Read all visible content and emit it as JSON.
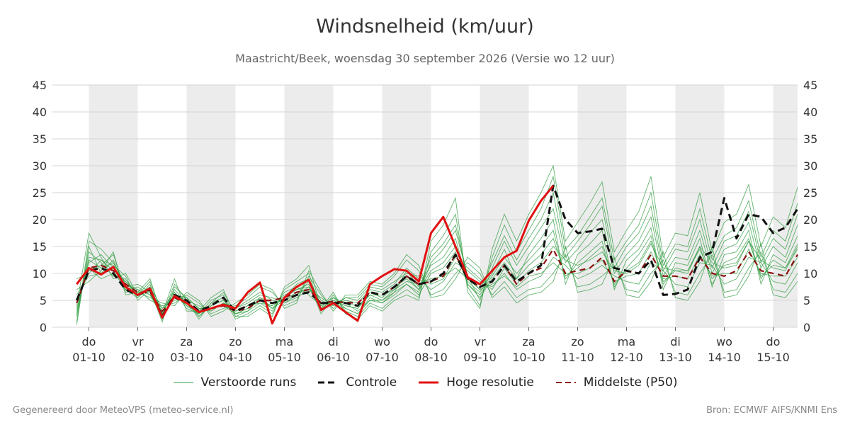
{
  "title": "Windsnelheid (km/uur)",
  "subtitle": "Maastricht/Beek, woensdag 30 september 2026 (Versie wo 12 uur)",
  "footer": {
    "left": "Gegenereerd door MeteoVPS (meteo-service.nl)",
    "right": "Bron: ECMWF AIFS/KNMI Ens"
  },
  "legend": [
    {
      "label": "Verstoorde runs",
      "color": "#2e9b3e",
      "style": "thin"
    },
    {
      "label": "Controle",
      "color": "#111111",
      "style": "dashed"
    },
    {
      "label": "Hoge resolutie",
      "color": "#e01010",
      "style": "solid"
    },
    {
      "label": "Middelste (P50)",
      "color": "#8b1010",
      "style": "dashed"
    }
  ],
  "chart_data": {
    "type": "line",
    "title": "Windsnelheid (km/uur)",
    "ylim": [
      0,
      45
    ],
    "yticks": [
      0,
      5,
      10,
      15,
      20,
      25,
      30,
      35,
      40,
      45
    ],
    "xlim": [
      -0.25,
      14.5
    ],
    "grid": true,
    "legend_position": "bottom",
    "x_day_labels": [
      {
        "day": "do",
        "date": "01-10"
      },
      {
        "day": "vr",
        "date": "02-10"
      },
      {
        "day": "za",
        "date": "03-10"
      },
      {
        "day": "zo",
        "date": "04-10"
      },
      {
        "day": "ma",
        "date": "05-10"
      },
      {
        "day": "di",
        "date": "06-10"
      },
      {
        "day": "wo",
        "date": "07-10"
      },
      {
        "day": "do",
        "date": "08-10"
      },
      {
        "day": "vr",
        "date": "09-10"
      },
      {
        "day": "za",
        "date": "10-10"
      },
      {
        "day": "zo",
        "date": "11-10"
      },
      {
        "day": "ma",
        "date": "12-10"
      },
      {
        "day": "di",
        "date": "13-10"
      },
      {
        "day": "wo",
        "date": "14-10"
      },
      {
        "day": "do",
        "date": "15-10"
      }
    ],
    "series": [
      {
        "name": "Hoge resolutie",
        "color": "#e01010",
        "style": "solid",
        "x": [
          -0.25,
          0.0,
          0.25,
          0.5,
          0.75,
          1.0,
          1.25,
          1.5,
          1.75,
          2.0,
          2.25,
          2.5,
          2.75,
          3.0,
          3.25,
          3.5,
          3.75,
          4.0,
          4.25,
          4.5,
          4.75,
          5.0,
          5.25,
          5.5,
          5.75,
          6.0,
          6.25,
          6.5,
          6.75,
          7.0,
          7.25,
          7.5,
          7.75,
          8.0,
          8.25,
          8.5,
          8.75,
          9.0,
          9.25,
          9.5
        ],
        "y": [
          8.0,
          11.0,
          9.8,
          11.2,
          7.5,
          6.0,
          7.2,
          1.8,
          5.8,
          4.5,
          2.8,
          3.5,
          4.2,
          3.5,
          6.5,
          8.3,
          0.7,
          5.5,
          7.5,
          8.8,
          3.2,
          4.5,
          2.8,
          1.2,
          8.0,
          9.5,
          10.8,
          10.5,
          8.5,
          17.5,
          20.5,
          15.0,
          9.3,
          8.0,
          10.5,
          13.0,
          14.2,
          19.8,
          23.5,
          26.3
        ]
      },
      {
        "name": "Controle",
        "color": "#111111",
        "style": "dashed",
        "x": [
          -0.25,
          0.0,
          0.25,
          0.5,
          0.75,
          1.0,
          1.25,
          1.5,
          1.75,
          2.0,
          2.25,
          2.5,
          2.75,
          3.0,
          3.25,
          3.5,
          3.75,
          4.0,
          4.25,
          4.5,
          4.75,
          5.0,
          5.25,
          5.5,
          5.75,
          6.0,
          6.25,
          6.5,
          6.75,
          7.0,
          7.25,
          7.5,
          7.75,
          8.0,
          8.25,
          8.5,
          8.75,
          9.0,
          9.25,
          9.5,
          9.75,
          10.0,
          10.25,
          10.5,
          10.75,
          11.0,
          11.25,
          11.5,
          11.75,
          12.0,
          12.25,
          12.5,
          12.75,
          13.0,
          13.25,
          13.5,
          13.75,
          14.0,
          14.25,
          14.5
        ],
        "y": [
          5.0,
          10.5,
          11.0,
          10.0,
          7.0,
          6.0,
          7.0,
          2.0,
          6.0,
          5.0,
          3.0,
          4.0,
          5.5,
          3.0,
          4.0,
          5.0,
          4.5,
          5.0,
          6.0,
          6.5,
          4.5,
          4.5,
          4.5,
          4.0,
          6.5,
          6.0,
          7.5,
          9.5,
          8.0,
          8.5,
          10.0,
          13.5,
          9.0,
          7.5,
          8.5,
          11.5,
          8.5,
          10.0,
          11.5,
          26.3,
          20.0,
          17.5,
          17.8,
          18.3,
          11.0,
          10.5,
          10.0,
          12.5,
          6.0,
          6.2,
          7.0,
          13.0,
          14.0,
          24.0,
          16.5,
          21.0,
          20.5,
          17.5,
          18.5,
          22.0
        ]
      },
      {
        "name": "Middelste (P50)",
        "color": "#8b1010",
        "style": "dashed",
        "x": [
          -0.25,
          0.0,
          0.25,
          0.5,
          0.75,
          1.0,
          1.25,
          1.5,
          1.75,
          2.0,
          2.25,
          2.5,
          2.75,
          3.0,
          3.25,
          3.5,
          3.75,
          4.0,
          4.25,
          4.5,
          4.75,
          5.0,
          5.25,
          5.5,
          5.75,
          6.0,
          6.25,
          6.5,
          6.75,
          7.0,
          7.25,
          7.5,
          7.75,
          8.0,
          8.25,
          8.5,
          8.75,
          9.0,
          9.25,
          9.5,
          9.75,
          10.0,
          10.25,
          10.5,
          10.75,
          11.0,
          11.25,
          11.5,
          11.75,
          12.0,
          12.25,
          12.5,
          12.75,
          13.0,
          13.25,
          13.5,
          13.75,
          14.0,
          14.25,
          14.5
        ],
        "y": [
          4.5,
          11.0,
          11.5,
          10.5,
          8.0,
          6.5,
          6.5,
          3.0,
          5.5,
          4.5,
          3.0,
          3.5,
          4.0,
          3.0,
          3.5,
          5.0,
          5.0,
          5.5,
          6.5,
          7.0,
          4.5,
          4.8,
          4.6,
          4.5,
          6.5,
          6.0,
          7.5,
          9.5,
          8.0,
          8.5,
          9.5,
          13.5,
          9.0,
          7.5,
          8.5,
          11.5,
          8.0,
          10.0,
          11.0,
          14.5,
          10.0,
          10.5,
          11.0,
          13.0,
          8.5,
          10.5,
          10.0,
          13.5,
          9.5,
          9.5,
          9.0,
          13.0,
          10.0,
          9.5,
          10.5,
          14.0,
          10.5,
          10.0,
          9.5,
          13.5
        ]
      }
    ],
    "ensemble": {
      "name": "Verstoorde runs",
      "color": "#2e9b3e",
      "x": [
        -0.25,
        0.0,
        0.25,
        0.5,
        0.75,
        1.0,
        1.25,
        1.5,
        1.75,
        2.0,
        2.25,
        2.5,
        2.75,
        3.0,
        3.25,
        3.5,
        3.75,
        4.0,
        4.25,
        4.5,
        4.75,
        5.0,
        5.25,
        5.5,
        5.75,
        6.0,
        6.25,
        6.5,
        6.75,
        7.0,
        7.25,
        7.5,
        7.75,
        8.0,
        8.25,
        8.5,
        8.75,
        9.0,
        9.25,
        9.5,
        9.75,
        10.0,
        10.25,
        10.5,
        10.75,
        11.0,
        11.25,
        11.5,
        11.75,
        12.0,
        12.25,
        12.5,
        12.75,
        13.0,
        13.25,
        13.5,
        13.75,
        14.0,
        14.25,
        14.5
      ],
      "runs": [
        [
          3.5,
          12.0,
          13.5,
          11.0,
          8.5,
          6.0,
          7.5,
          2.5,
          7.0,
          4.5,
          2.0,
          4.0,
          5.0,
          2.5,
          3.5,
          5.0,
          4.0,
          5.5,
          7.0,
          7.5,
          3.5,
          5.0,
          4.0,
          3.5,
          6.5,
          5.5,
          7.5,
          9.0,
          7.0,
          10.5,
          12.0,
          15.0,
          8.0,
          6.0,
          9.5,
          13.0,
          10.0,
          12.5,
          15.0,
          18.0,
          9.0,
          12.0,
          14.0,
          16.0,
          7.5,
          11.0,
          13.5,
          17.0,
          8.0,
          11.0,
          10.5,
          15.0,
          8.0,
          12.0,
          13.0,
          16.5,
          9.0,
          12.5,
          11.0,
          15.5
        ],
        [
          6.0,
          9.5,
          10.0,
          12.5,
          7.0,
          7.5,
          6.0,
          3.5,
          5.0,
          5.5,
          3.5,
          3.0,
          4.5,
          3.5,
          4.5,
          6.0,
          5.5,
          4.5,
          6.0,
          8.5,
          5.0,
          4.0,
          5.0,
          4.5,
          7.0,
          6.5,
          8.0,
          11.0,
          9.0,
          7.0,
          8.5,
          12.0,
          10.5,
          8.5,
          7.5,
          10.0,
          7.0,
          8.5,
          9.5,
          13.0,
          11.5,
          9.0,
          10.0,
          11.5,
          9.5,
          8.5,
          8.0,
          12.0,
          10.5,
          8.0,
          7.5,
          12.0,
          11.5,
          8.0,
          9.0,
          13.0,
          12.0,
          8.5,
          8.0,
          12.0
        ],
        [
          2.0,
          14.0,
          12.0,
          9.5,
          9.0,
          5.5,
          8.0,
          1.5,
          6.5,
          3.5,
          2.5,
          5.0,
          6.0,
          2.0,
          3.0,
          4.5,
          3.0,
          6.5,
          7.5,
          6.0,
          4.0,
          5.5,
          3.5,
          2.5,
          5.5,
          4.5,
          6.5,
          8.0,
          6.5,
          12.0,
          14.5,
          18.0,
          9.5,
          5.0,
          11.0,
          16.0,
          11.5,
          15.0,
          18.5,
          22.0,
          12.0,
          14.5,
          17.5,
          20.0,
          10.0,
          13.5,
          16.0,
          20.5,
          9.5,
          13.0,
          12.5,
          18.0,
          10.0,
          14.5,
          15.5,
          19.5,
          11.0,
          15.0,
          13.0,
          19.0
        ],
        [
          8.0,
          10.5,
          11.5,
          13.5,
          6.5,
          7.0,
          5.0,
          4.0,
          4.5,
          6.0,
          4.5,
          2.5,
          3.5,
          4.0,
          5.5,
          7.5,
          6.5,
          4.0,
          5.0,
          9.5,
          6.0,
          3.5,
          5.5,
          5.5,
          8.0,
          7.5,
          9.5,
          12.5,
          10.5,
          6.0,
          7.0,
          10.0,
          12.0,
          10.0,
          6.0,
          8.5,
          5.5,
          7.0,
          7.5,
          10.0,
          13.5,
          7.5,
          8.0,
          9.5,
          11.5,
          7.0,
          6.5,
          10.0,
          12.5,
          6.5,
          6.0,
          10.0,
          13.5,
          6.5,
          7.0,
          11.0,
          14.0,
          7.0,
          6.5,
          10.0
        ],
        [
          1.0,
          16.0,
          14.5,
          12.0,
          8.0,
          6.5,
          9.0,
          2.0,
          8.0,
          5.0,
          1.5,
          4.5,
          5.5,
          1.5,
          2.5,
          4.0,
          2.5,
          7.0,
          8.5,
          10.0,
          3.0,
          6.0,
          3.0,
          2.0,
          4.5,
          3.5,
          5.5,
          7.0,
          5.5,
          14.0,
          17.0,
          21.0,
          7.5,
          4.0,
          13.0,
          19.0,
          14.0,
          18.0,
          22.0,
          28.0,
          14.5,
          17.0,
          20.5,
          24.0,
          12.5,
          16.0,
          19.0,
          25.0,
          11.5,
          15.5,
          15.0,
          22.0,
          12.5,
          17.0,
          18.5,
          23.5,
          13.0,
          18.0,
          16.0,
          23.0
        ],
        [
          5.0,
          11.0,
          9.0,
          10.0,
          7.5,
          8.0,
          6.5,
          3.0,
          6.0,
          4.0,
          3.0,
          3.5,
          4.0,
          3.0,
          4.0,
          5.5,
          4.5,
          5.0,
          6.5,
          7.0,
          4.5,
          4.5,
          4.5,
          4.0,
          6.0,
          6.0,
          7.0,
          8.5,
          8.0,
          9.0,
          9.5,
          11.0,
          9.0,
          7.0,
          8.0,
          9.5,
          7.5,
          9.5,
          10.0,
          12.0,
          10.0,
          10.0,
          11.0,
          12.5,
          8.5,
          9.5,
          10.0,
          14.0,
          9.0,
          9.5,
          9.0,
          13.5,
          9.5,
          10.0,
          10.0,
          14.5,
          10.0,
          9.5,
          9.5,
          13.0
        ],
        [
          3.0,
          13.0,
          12.5,
          11.5,
          9.5,
          5.0,
          7.0,
          1.0,
          7.5,
          5.5,
          2.0,
          4.5,
          6.5,
          2.5,
          3.0,
          5.5,
          3.5,
          6.0,
          7.0,
          8.0,
          2.5,
          5.5,
          4.5,
          3.0,
          5.0,
          5.0,
          6.5,
          10.5,
          7.5,
          11.5,
          13.0,
          16.5,
          8.5,
          6.5,
          10.0,
          14.5,
          9.0,
          13.5,
          16.5,
          20.0,
          8.0,
          13.5,
          15.5,
          18.0,
          7.0,
          12.5,
          14.5,
          18.5,
          7.0,
          12.0,
          11.5,
          16.5,
          7.5,
          13.5,
          14.0,
          18.0,
          8.0,
          13.5,
          12.0,
          17.0
        ],
        [
          7.0,
          8.5,
          10.5,
          14.0,
          6.0,
          6.5,
          5.5,
          4.5,
          4.0,
          6.5,
          5.0,
          2.0,
          3.0,
          4.5,
          6.0,
          8.0,
          7.0,
          3.5,
          4.5,
          10.5,
          6.5,
          3.0,
          6.0,
          6.0,
          8.5,
          8.0,
          10.0,
          13.5,
          11.5,
          5.5,
          6.0,
          9.0,
          13.0,
          11.0,
          5.5,
          7.5,
          4.5,
          6.0,
          6.5,
          8.5,
          15.0,
          6.5,
          7.0,
          8.0,
          13.0,
          6.0,
          5.5,
          8.5,
          14.0,
          5.5,
          5.0,
          8.5,
          15.0,
          5.5,
          6.0,
          9.5,
          15.5,
          6.0,
          5.5,
          8.5
        ],
        [
          4.0,
          17.5,
          13.0,
          9.0,
          10.0,
          6.0,
          8.5,
          2.5,
          9.0,
          3.0,
          3.0,
          5.5,
          7.0,
          2.0,
          2.0,
          3.5,
          2.0,
          7.5,
          9.0,
          11.5,
          3.5,
          6.5,
          2.5,
          1.5,
          4.0,
          3.0,
          5.0,
          6.0,
          5.0,
          16.0,
          19.0,
          24.0,
          6.5,
          3.5,
          14.5,
          21.0,
          16.0,
          21.0,
          25.0,
          30.0,
          16.0,
          19.5,
          23.0,
          27.0,
          14.0,
          18.0,
          21.5,
          28.0,
          13.0,
          17.5,
          17.0,
          25.0,
          14.0,
          19.5,
          21.0,
          26.5,
          15.0,
          20.5,
          18.5,
          26.0
        ],
        [
          2.5,
          12.5,
          11.0,
          12.0,
          8.0,
          7.0,
          6.0,
          2.0,
          5.5,
          5.0,
          4.0,
          3.0,
          4.5,
          3.5,
          5.0,
          6.5,
          5.0,
          4.5,
          5.5,
          7.0,
          5.5,
          4.0,
          5.5,
          5.0,
          7.5,
          7.0,
          8.5,
          10.0,
          9.5,
          8.0,
          9.0,
          13.0,
          11.0,
          9.0,
          7.0,
          11.0,
          8.0,
          10.5,
          12.0,
          15.0,
          12.5,
          11.5,
          12.5,
          14.0,
          10.5,
          10.0,
          11.5,
          15.5,
          11.0,
          10.5,
          10.0,
          15.0,
          12.0,
          11.0,
          11.5,
          16.0,
          12.5,
          11.0,
          10.5,
          15.0
        ],
        [
          9.0,
          10.0,
          12.5,
          10.5,
          7.0,
          5.5,
          7.5,
          3.5,
          6.5,
          4.0,
          2.5,
          4.0,
          5.0,
          3.0,
          4.0,
          4.5,
          4.0,
          5.5,
          8.0,
          9.0,
          4.0,
          5.0,
          4.0,
          3.5,
          6.0,
          5.0,
          7.0,
          9.5,
          7.0,
          13.0,
          15.5,
          19.0,
          9.5,
          7.0,
          12.0,
          17.0,
          12.5,
          16.5,
          20.0,
          25.0,
          13.0,
          16.0,
          19.0,
          22.5,
          11.0,
          15.0,
          17.5,
          22.5,
          10.5,
          14.5,
          14.0,
          20.0,
          11.0,
          16.0,
          17.0,
          21.5,
          12.0,
          16.5,
          14.5,
          21.0
        ],
        [
          0.5,
          15.0,
          10.0,
          11.0,
          8.5,
          6.5,
          6.5,
          1.5,
          6.0,
          5.5,
          3.5,
          3.5,
          4.0,
          2.5,
          3.5,
          5.0,
          3.5,
          5.0,
          6.0,
          7.5,
          4.5,
          4.5,
          3.5,
          2.5,
          5.0,
          4.5,
          6.0,
          8.0,
          6.0,
          10.0,
          11.0,
          14.0,
          8.0,
          5.5,
          9.0,
          12.0,
          9.0,
          11.5,
          13.5,
          16.5,
          9.5,
          11.0,
          13.0,
          15.0,
          8.0,
          10.5,
          12.0,
          16.0,
          8.5,
          10.5,
          10.5,
          14.5,
          9.0,
          11.5,
          12.0,
          16.0,
          9.5,
          11.5,
          11.0,
          14.5
        ]
      ]
    }
  }
}
